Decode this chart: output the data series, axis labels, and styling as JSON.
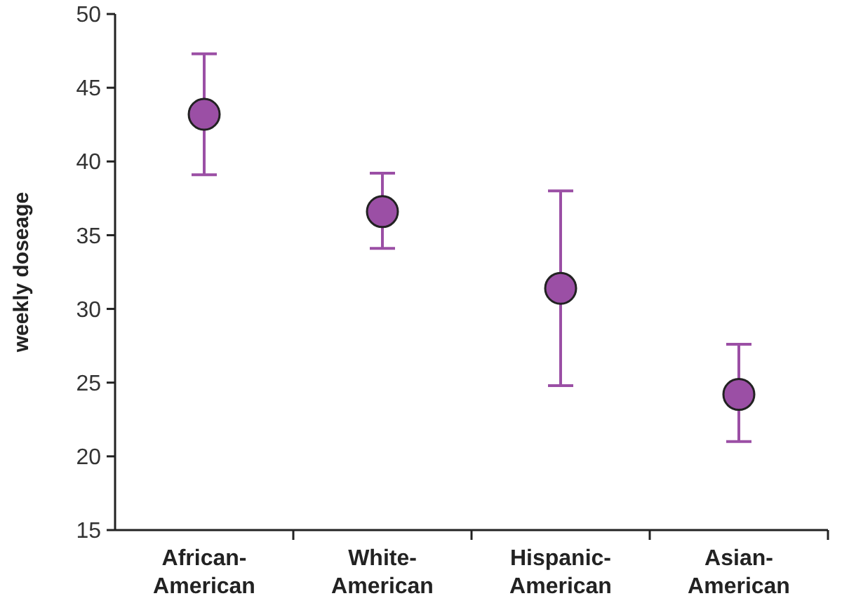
{
  "chart_data": {
    "type": "scatter",
    "ylabel": "weekly doseage",
    "categories": [
      "African-American",
      "White-American",
      "Hispanic-American",
      "Asian-American"
    ],
    "values": [
      43.2,
      36.6,
      31.4,
      24.2
    ],
    "errors": [
      [
        39.1,
        47.3
      ],
      [
        34.1,
        39.2
      ],
      [
        24.8,
        38.0
      ],
      [
        21.0,
        27.6
      ]
    ],
    "color": "#9b4fa5",
    "marker": "circle",
    "ylim": [
      15,
      50
    ],
    "yticks": [
      15,
      20,
      25,
      30,
      35,
      40,
      45,
      50
    ],
    "grid": false
  }
}
